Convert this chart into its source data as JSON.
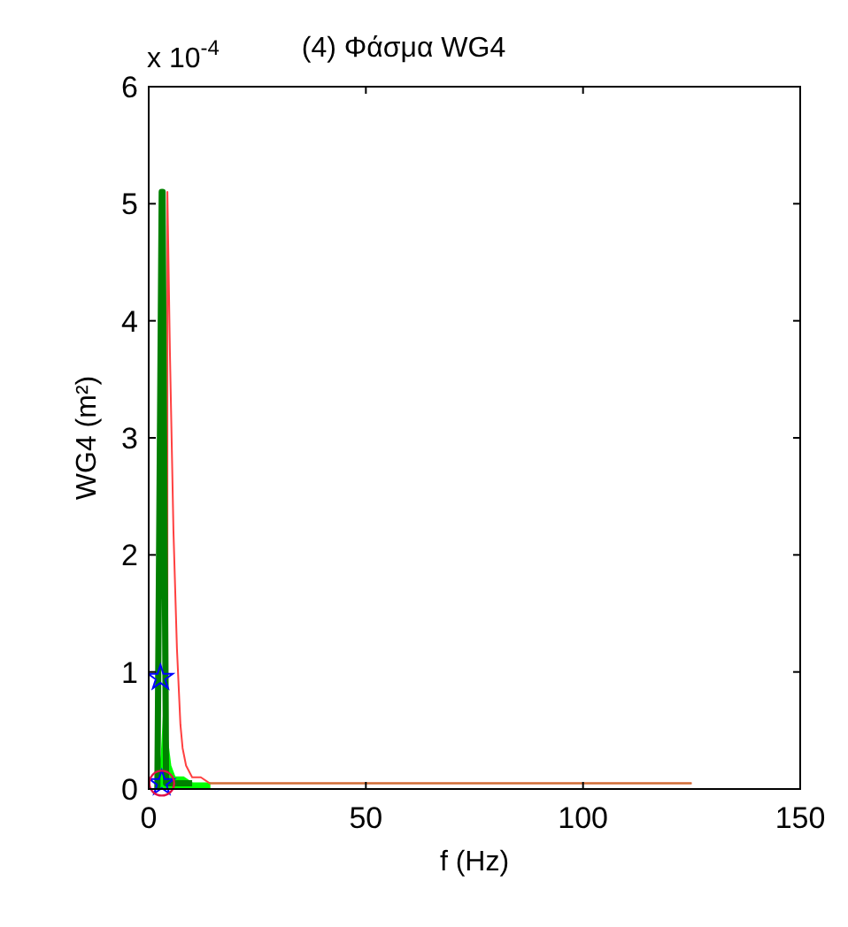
{
  "chart_data": {
    "type": "line",
    "title": "(4) Φάσμα   WG4",
    "xlabel": "f (Hz)",
    "ylabel": "WG4 (m²)",
    "annotations": [
      "x 10$^{-4}$"
    ],
    "xlim": [
      0,
      150
    ],
    "xticks": [
      0,
      50,
      100,
      150
    ],
    "ylim": [
      0,
      6
    ],
    "yticks": [
      0,
      1,
      2,
      3,
      4,
      5,
      6
    ],
    "grid": false,
    "series": [
      {
        "type": "area",
        "color": "#00ff00",
        "x": [
          2,
          3,
          3.5,
          4,
          5,
          6,
          7,
          8,
          10,
          12,
          14
        ],
        "values": [
          0,
          0.3,
          0.65,
          0.5,
          0.2,
          0.1,
          0.1,
          0.1,
          0.05,
          0.05,
          0.05
        ]
      },
      {
        "color": "#ff4040",
        "x": [
          4.3,
          4.3,
          4.9,
          5.7,
          6.5,
          7.3,
          7.8,
          8.6,
          10,
          12,
          14,
          20,
          125
        ],
        "values": [
          0,
          5.1,
          3.7,
          2.2,
          1.2,
          0.55,
          0.35,
          0.2,
          0.1,
          0.1,
          0.05,
          0.05,
          0.05
        ]
      },
      {
        "color": "#c87533",
        "x": [
          14,
          125
        ],
        "values": [
          0.05,
          0.05
        ]
      },
      {
        "color": "#008000",
        "x": [
          2,
          3,
          3.2,
          4,
          10
        ],
        "values": [
          0,
          5.1,
          5.1,
          0.05,
          0.05
        ]
      },
      {
        "type": "scatter",
        "marker": "star",
        "color": "#0000ff",
        "x": [
          2.7,
          3
        ],
        "values": [
          0.95,
          0.05
        ]
      },
      {
        "type": "scatter",
        "marker": "circle",
        "color": "#e0104a",
        "x": [
          3
        ],
        "values": [
          0.05
        ]
      }
    ]
  }
}
